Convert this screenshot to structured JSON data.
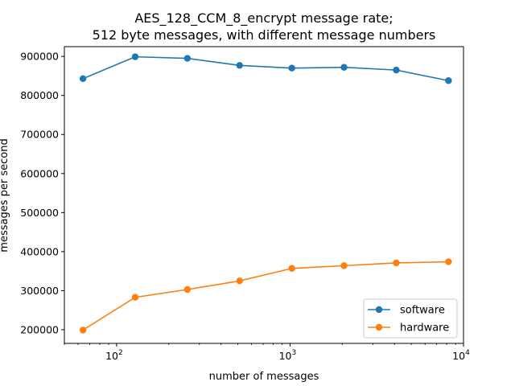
{
  "chart_data": {
    "type": "line",
    "title_line1": "AES_128_CCM_8_encrypt message rate;",
    "title_line2": "512 byte messages, with different message numbers",
    "xlabel": "number of messages",
    "ylabel": "messages per second",
    "x_scale": "log",
    "xlim": [
      50,
      10000
    ],
    "ylim": [
      165000,
      925000
    ],
    "x_ticks": [
      {
        "base": "10",
        "exp": "2",
        "value": 100
      },
      {
        "base": "10",
        "exp": "3",
        "value": 1000
      },
      {
        "base": "10",
        "exp": "4",
        "value": 10000
      }
    ],
    "y_ticks": [
      {
        "label": "200000",
        "value": 200000
      },
      {
        "label": "300000",
        "value": 300000
      },
      {
        "label": "400000",
        "value": 400000
      },
      {
        "label": "500000",
        "value": 500000
      },
      {
        "label": "600000",
        "value": 600000
      },
      {
        "label": "700000",
        "value": 700000
      },
      {
        "label": "800000",
        "value": 800000
      },
      {
        "label": "900000",
        "value": 900000
      }
    ],
    "x": [
      64,
      128,
      256,
      512,
      1024,
      2048,
      4096,
      8192
    ],
    "series": [
      {
        "name": "software",
        "color": "#1f77b4",
        "values": [
          843000,
          899000,
          895000,
          877000,
          870000,
          872000,
          865000,
          838000
        ]
      },
      {
        "name": "hardware",
        "color": "#ff7f0e",
        "values": [
          199000,
          283000,
          303000,
          325000,
          357000,
          364000,
          371000,
          374000
        ]
      }
    ],
    "legend_position": "lower-right",
    "grid": false
  }
}
